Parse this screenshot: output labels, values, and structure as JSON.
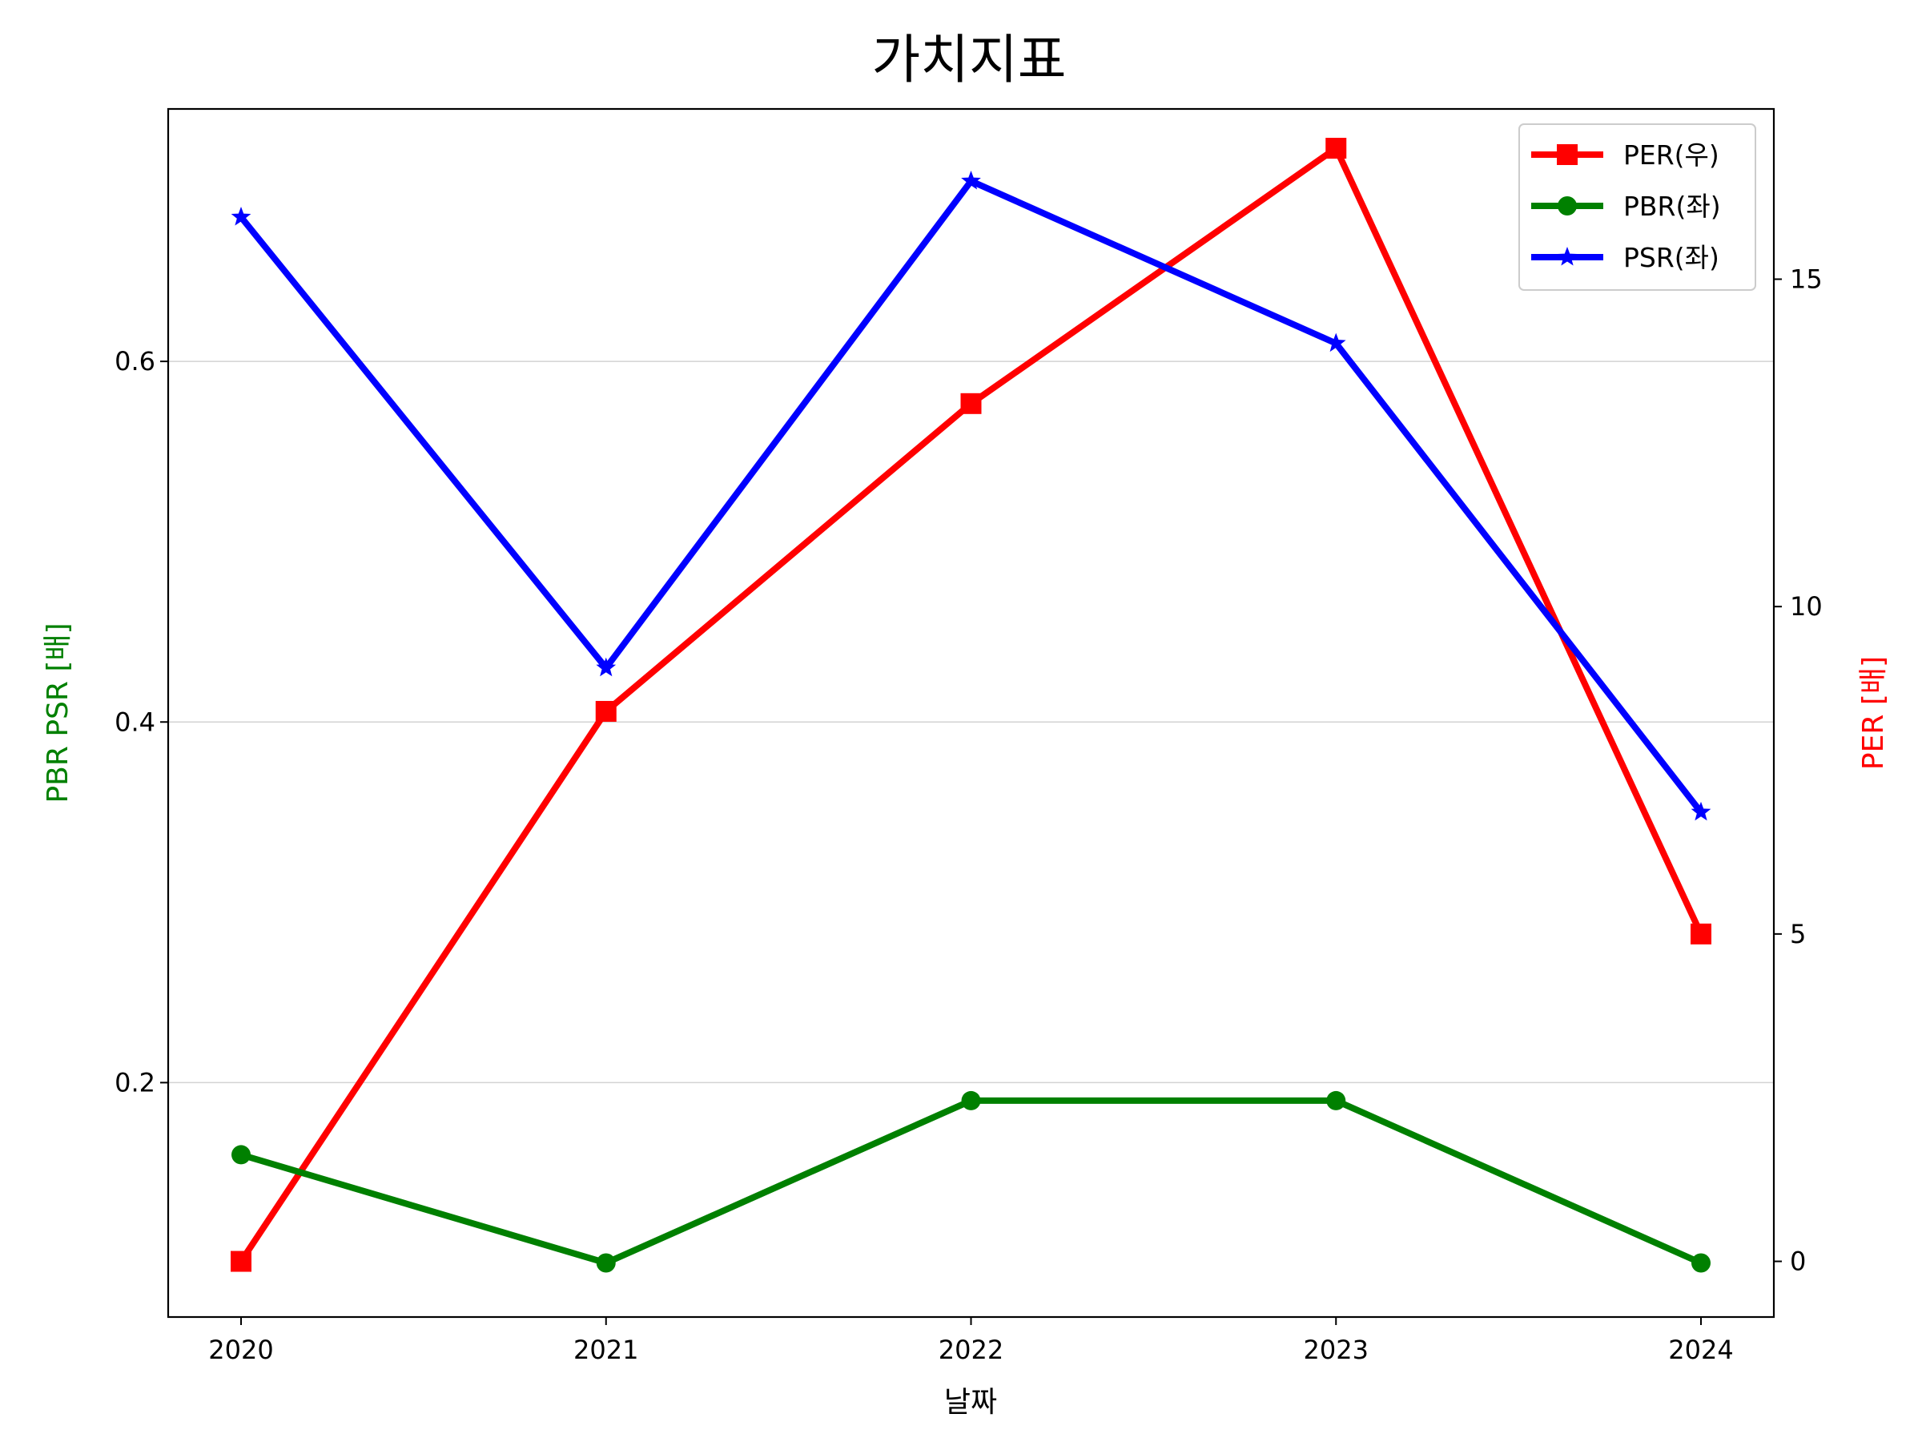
{
  "chart_data": {
    "type": "line",
    "title": "가치지표",
    "xlabel": "날짜",
    "ylabel_left": "PBR PSR [배]",
    "ylabel_right": "PER [배]",
    "ylabel_left_color": "#008000",
    "ylabel_right_color": "#ff0000",
    "categories": [
      "2020",
      "2021",
      "2022",
      "2023",
      "2024"
    ],
    "left_axis": {
      "ylim": [
        0.07,
        0.74
      ],
      "ticks": [
        "0.2",
        "0.4",
        "0.6"
      ],
      "tick_values": [
        0.2,
        0.4,
        0.6
      ],
      "grid": true
    },
    "right_axis": {
      "ylim": [
        -0.85,
        17.6
      ],
      "ticks": [
        "0",
        "5",
        "10",
        "15"
      ],
      "tick_values": [
        0,
        5,
        10,
        15
      ]
    },
    "legend_position": "top-right",
    "series": [
      {
        "name": "PER(우)",
        "axis": "right",
        "color": "#ff0000",
        "marker": "square",
        "values": [
          0,
          8.4,
          13.1,
          17.0,
          5.0
        ]
      },
      {
        "name": "PBR(좌)",
        "axis": "left",
        "color": "#008000",
        "marker": "circle",
        "values": [
          0.16,
          0.1,
          0.19,
          0.19,
          0.1
        ]
      },
      {
        "name": "PSR(좌)",
        "axis": "left",
        "color": "#0000ff",
        "marker": "star",
        "values": [
          0.68,
          0.43,
          0.7,
          0.61,
          0.35
        ]
      }
    ]
  }
}
